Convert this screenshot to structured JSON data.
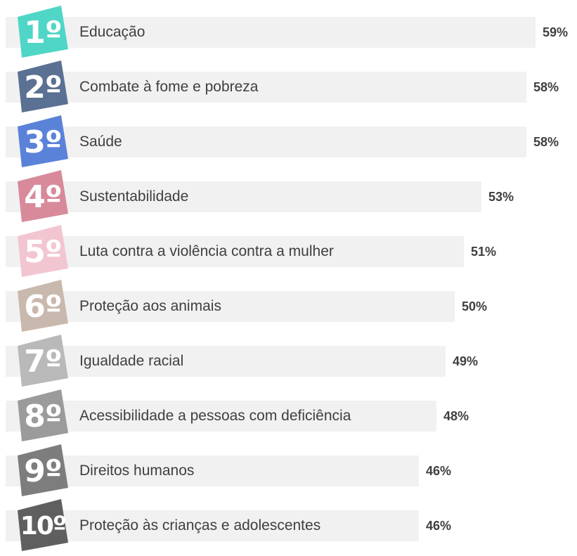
{
  "chart_data": {
    "type": "bar",
    "orientation": "horizontal",
    "categories": [
      "Educação",
      "Combate à fome e pobreza",
      "Saúde",
      "Sustentabilidade",
      "Luta contra a violência contra a mulher",
      "Proteção aos animais",
      "Igualdade racial",
      "Acessibilidade a pessoas com deficiência",
      "Direitos humanos",
      "Proteção às crianças e adolescentes"
    ],
    "ranks": [
      "1º",
      "2º",
      "3º",
      "4º",
      "5º",
      "6º",
      "7º",
      "8º",
      "9º",
      "10º"
    ],
    "values": [
      59,
      58,
      58,
      53,
      51,
      50,
      49,
      48,
      46,
      46
    ],
    "value_labels": [
      "59%",
      "58%",
      "58%",
      "53%",
      "51%",
      "50%",
      "49%",
      "48%",
      "46%",
      "46%"
    ],
    "badge_colors": [
      "#4fd6c6",
      "#5b7193",
      "#5b82d9",
      "#d88a9a",
      "#f2c6d0",
      "#c9b8ad",
      "#b9b9b9",
      "#9b9b9b",
      "#7d7d7d",
      "#5f5f5f"
    ],
    "bar_color": "#f1f1f1",
    "title": "",
    "xlabel": "",
    "ylabel": "",
    "xlim": [
      0,
      59
    ]
  }
}
